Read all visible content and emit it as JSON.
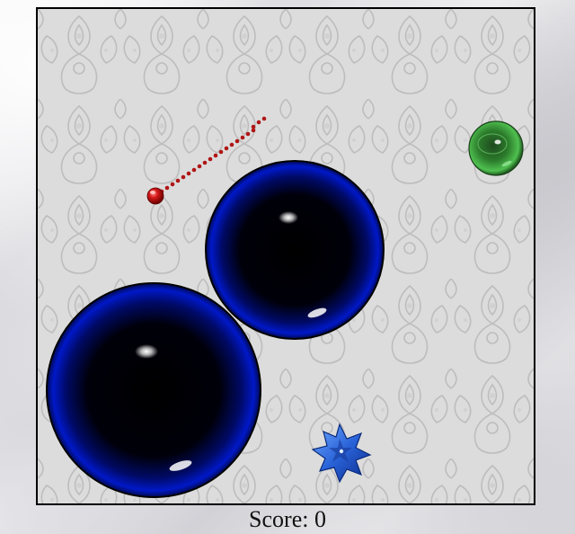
{
  "hud": {
    "score_label": "Score:",
    "score_value": "0"
  },
  "game": {
    "player_ball": {
      "kind": "red-ball",
      "color": "#cc1111"
    },
    "aim_line": {
      "kind": "aim-trail",
      "color": "#b01515"
    },
    "target": {
      "kind": "green-orb",
      "color": "#2f9a2f"
    },
    "obstacles": [
      {
        "kind": "blue-sphere",
        "color": "#0018c8"
      },
      {
        "kind": "blue-sphere",
        "color": "#0018c8"
      }
    ],
    "pickup": {
      "kind": "blue-star",
      "color": "#2a63d8"
    },
    "background_pattern": "damask"
  }
}
